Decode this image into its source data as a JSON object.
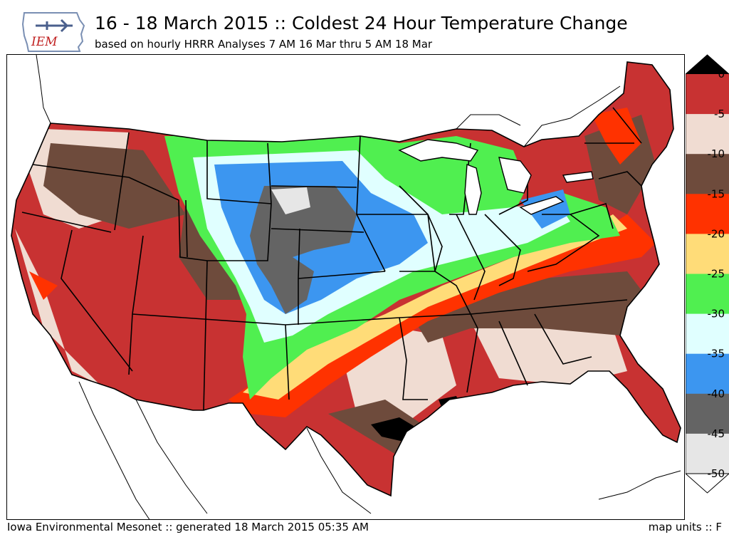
{
  "header": {
    "logo_text": "IEM",
    "title": "16 - 18 March 2015 :: Coldest 24 Hour Temperature Change",
    "subtitle": "based on hourly HRRR Analyses 7 AM 16 Mar thru 5 AM 18 Mar"
  },
  "footer": {
    "credit": "Iowa Environmental Mesonet :: generated 18 March 2015 05:35 AM",
    "units": "map units :: F"
  },
  "colorbar": {
    "ticks": [
      "0",
      "-5",
      "-10",
      "-15",
      "-20",
      "-25",
      "-30",
      "-35",
      "-40",
      "-45",
      "-50"
    ],
    "bins": [
      {
        "range": "0 to -5",
        "color": "#c83232"
      },
      {
        "range": "-5 to -10",
        "color": "#f0dcd2"
      },
      {
        "range": "-10 to -15",
        "color": "#6e4b3c"
      },
      {
        "range": "-15 to -20",
        "color": "#ff3200"
      },
      {
        "range": "-20 to -25",
        "color": "#ffdc78"
      },
      {
        "range": "-25 to -30",
        "color": "#50ef50"
      },
      {
        "range": "-30 to -35",
        "color": "#e0ffff"
      },
      {
        "range": "-35 to -40",
        "color": "#3c96f0"
      },
      {
        "range": "-40 to -45",
        "color": "#646464"
      },
      {
        "range": "-45 to -50",
        "color": "#e6e6e6"
      }
    ],
    "over_color": "#000000",
    "under_color": "#ffffff"
  }
}
